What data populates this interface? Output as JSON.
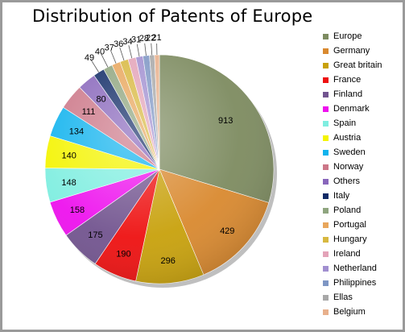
{
  "chart_data": {
    "type": "pie",
    "title": "Distribution of Patents of Europe",
    "categories": [
      "Europe",
      "Germany",
      "Great britain",
      "France",
      "Finland",
      "Denmark",
      "Spain",
      "Austria",
      "Sweden",
      "Norway",
      "Others",
      "Italy",
      "Poland",
      "Portugal",
      "Hungary",
      "Ireland",
      "Netherland",
      "Philippines",
      "Ellas",
      "Belgium"
    ],
    "values": [
      913,
      429,
      296,
      190,
      175,
      158,
      148,
      140,
      134,
      111,
      80,
      49,
      40,
      37,
      36,
      34,
      31,
      28,
      22,
      21
    ],
    "colors": [
      "#7d8b60",
      "#d9892f",
      "#c8a10c",
      "#ee1111",
      "#72548f",
      "#ee11ee",
      "#7feee0",
      "#f4f400",
      "#11b3ee",
      "#cc7788",
      "#8866bb",
      "#102a66",
      "#8fa57f",
      "#e8a65c",
      "#d8b840",
      "#e3a3b8",
      "#a18fd0",
      "#7e96c4",
      "#a8a8a8",
      "#e8b08c"
    ],
    "legend_position": "right",
    "start_angle_deg": 0,
    "direction": "clockwise"
  }
}
